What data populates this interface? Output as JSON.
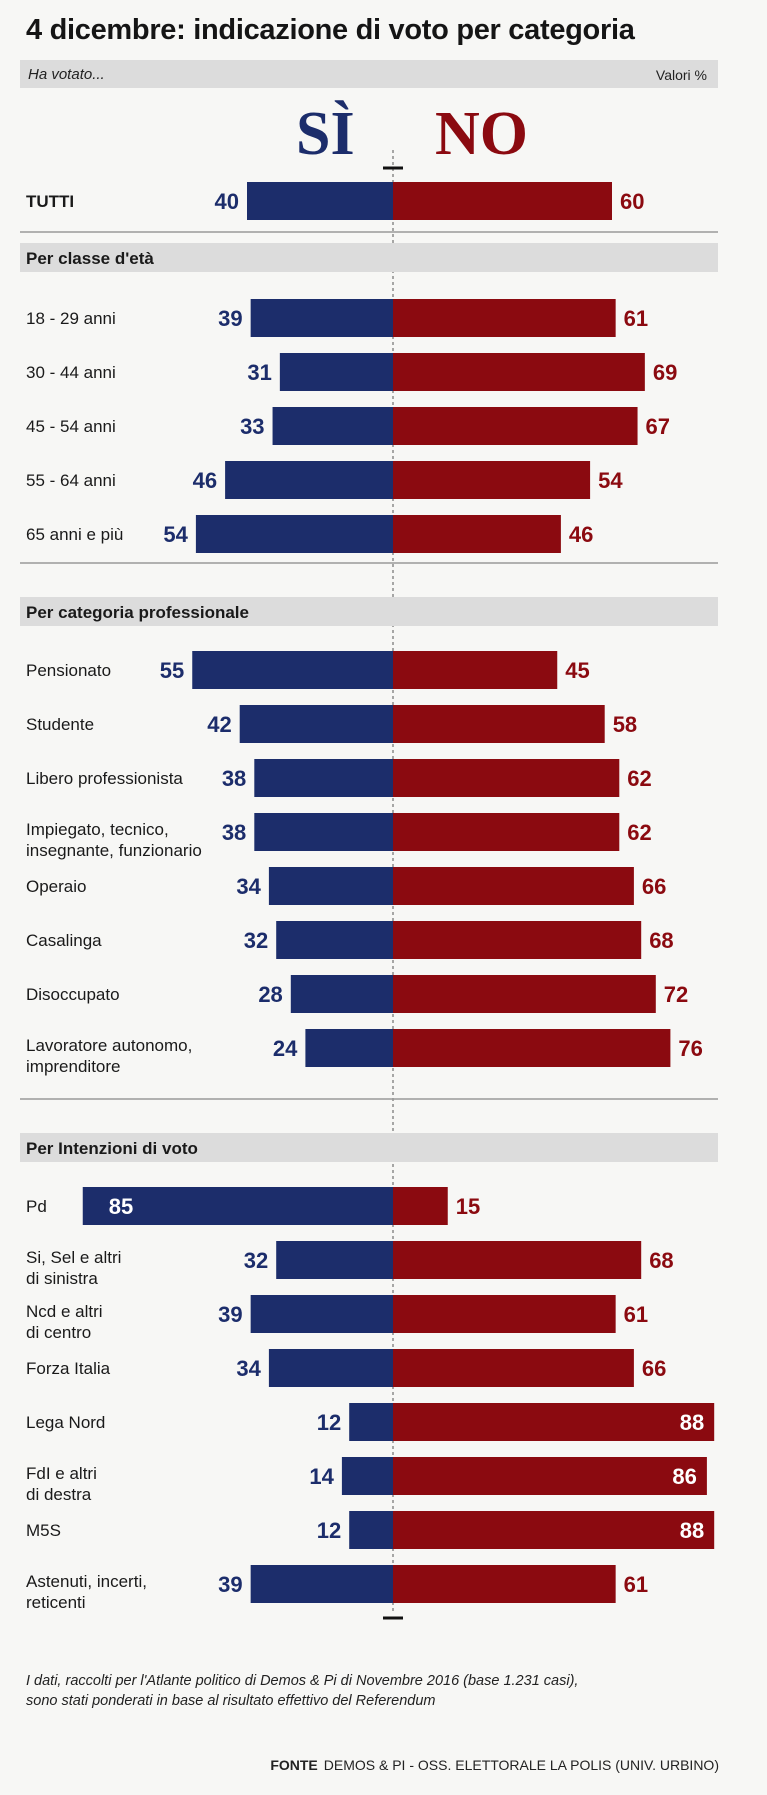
{
  "header": {
    "title": "4 dicembre: indicazione di voto per categoria",
    "subtitle": "Ha votato...",
    "unit": "Valori %"
  },
  "legend": {
    "yes_label": "SÌ",
    "no_label": "NO"
  },
  "colors": {
    "yes": "#1c2d6b",
    "no": "#8b0a10",
    "section_bar": "#dcdcdc"
  },
  "chart_data": {
    "type": "bar",
    "orientation": "horizontal-diverging",
    "series": [
      {
        "name": "SÌ",
        "key": "yes"
      },
      {
        "name": "NO",
        "key": "no"
      }
    ],
    "total": {
      "label": "TUTTI",
      "yes": 40,
      "no": 60
    },
    "groups": [
      {
        "title": "Per classe d'età",
        "rows": [
          {
            "label": [
              "18 - 29 anni"
            ],
            "yes": 39,
            "no": 61
          },
          {
            "label": [
              "30 - 44 anni"
            ],
            "yes": 31,
            "no": 69
          },
          {
            "label": [
              "45 - 54 anni"
            ],
            "yes": 33,
            "no": 67
          },
          {
            "label": [
              "55 - 64 anni"
            ],
            "yes": 46,
            "no": 54
          },
          {
            "label": [
              "65 anni e più"
            ],
            "yes": 54,
            "no": 46
          }
        ]
      },
      {
        "title": "Per categoria professionale",
        "rows": [
          {
            "label": [
              "Pensionato"
            ],
            "yes": 55,
            "no": 45
          },
          {
            "label": [
              "Studente"
            ],
            "yes": 42,
            "no": 58
          },
          {
            "label": [
              "Libero professionista"
            ],
            "yes": 38,
            "no": 62
          },
          {
            "label": [
              "Impiegato, tecnico,",
              "insegnante, funzionario"
            ],
            "yes": 38,
            "no": 62
          },
          {
            "label": [
              "Operaio"
            ],
            "yes": 34,
            "no": 66
          },
          {
            "label": [
              "Casalinga"
            ],
            "yes": 32,
            "no": 68
          },
          {
            "label": [
              "Disoccupato"
            ],
            "yes": 28,
            "no": 72
          },
          {
            "label": [
              "Lavoratore autonomo,",
              "imprenditore"
            ],
            "yes": 24,
            "no": 76
          }
        ]
      },
      {
        "title": "Per Intenzioni di voto",
        "rows": [
          {
            "label": [
              "Pd"
            ],
            "yes": 85,
            "no": 15
          },
          {
            "label": [
              "Si, Sel e altri",
              "di sinistra"
            ],
            "yes": 32,
            "no": 68
          },
          {
            "label": [
              "Ncd e altri",
              "di centro"
            ],
            "yes": 39,
            "no": 61
          },
          {
            "label": [
              "Forza Italia"
            ],
            "yes": 34,
            "no": 66
          },
          {
            "label": [
              "Lega Nord"
            ],
            "yes": 12,
            "no": 88
          },
          {
            "label": [
              "FdI e altri",
              "di destra"
            ],
            "yes": 14,
            "no": 86
          },
          {
            "label": [
              "M5S"
            ],
            "yes": 12,
            "no": 88
          },
          {
            "label": [
              "Astenuti, incerti,",
              "reticenti"
            ],
            "yes": 39,
            "no": 61
          }
        ]
      }
    ]
  },
  "footer": {
    "note_line1": "I dati, raccolti per l'Atlante politico di Demos & Pi di Novembre 2016 (base 1.231 casi),",
    "note_line2": "sono stati ponderati in base al risultato effettivo del Referendum",
    "source_label": "FONTE",
    "source_text": "DEMOS & PI - OSS. ELETTORALE LA POLIS (UNIV. URBINO)"
  }
}
